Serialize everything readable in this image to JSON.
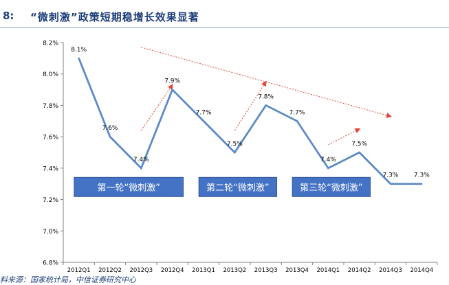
{
  "header": {
    "number": "8:",
    "title": "“微刺激”政策短期稳增长效果显著"
  },
  "footer": {
    "source": "料来源：国家统计局，中信证券研究中心"
  },
  "colors": {
    "line": "#5b8ac6",
    "trend_arrow": "#e0483a",
    "round_box": "#4472c4",
    "title": "#1f3f7a"
  },
  "chart_data": {
    "type": "line",
    "categories": [
      "2012Q1",
      "2012Q2",
      "2012Q3",
      "2012Q4",
      "2013Q1",
      "2013Q2",
      "2013Q3",
      "2013Q4",
      "2014Q1",
      "2014Q2",
      "2014Q3",
      "2014Q4"
    ],
    "values": [
      8.1,
      7.6,
      7.4,
      7.9,
      7.7,
      7.5,
      7.8,
      7.7,
      7.4,
      7.5,
      7.3,
      7.3
    ],
    "data_labels": [
      "8.1%",
      "7.6%",
      "7.4%",
      "7.9%",
      "7.7%",
      "7.5%",
      "7.8%",
      "7.7%",
      "7.4%",
      "7.5%",
      "7.3%",
      "7.3%"
    ],
    "ylim": [
      6.8,
      8.2
    ],
    "yticks": [
      6.8,
      7.0,
      7.2,
      7.4,
      7.6,
      7.8,
      8.0,
      8.2
    ],
    "ytick_labels": [
      "6.8%",
      "7.0%",
      "7.2%",
      "7.4%",
      "7.6%",
      "7.8%",
      "8.0%",
      "8.2%"
    ],
    "grid": false,
    "annotations": [
      {
        "text": "第一轮“微刺激”",
        "x_start": "2012Q1",
        "x_end": "2012Q4",
        "y": 7.28
      },
      {
        "text": "第二轮“微刺激”",
        "x_start": "2013Q1",
        "x_end": "2013Q3",
        "y": 7.28
      },
      {
        "text": "第三轮“微刺激”",
        "x_start": "2013Q4",
        "x_end": "2014Q2",
        "y": 7.28
      }
    ],
    "trend_arrows": [
      {
        "from": [
          "2012Q3",
          7.64
        ],
        "to": [
          "2012Q4",
          7.93
        ]
      },
      {
        "from": [
          "2013Q2",
          7.64
        ],
        "to": [
          "2013Q3",
          7.95
        ]
      },
      {
        "from": [
          "2014Q1",
          7.55
        ],
        "to": [
          "2014Q2",
          7.65
        ]
      },
      {
        "from": [
          "2012Q3",
          8.17
        ],
        "to": [
          "2014Q3",
          7.73
        ]
      }
    ]
  }
}
